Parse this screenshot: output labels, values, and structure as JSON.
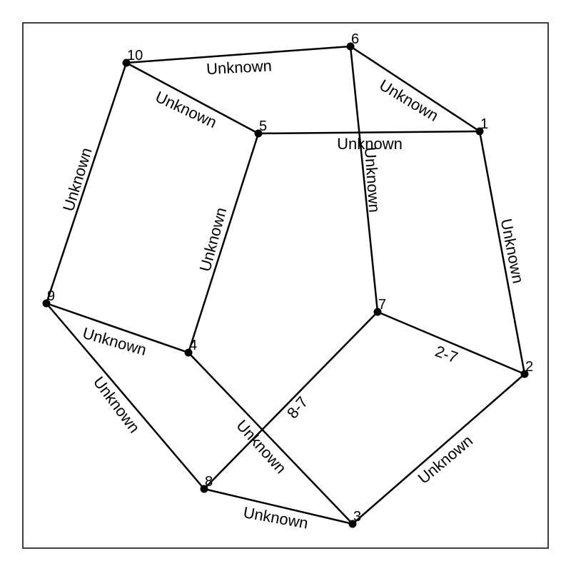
{
  "graph": {
    "nodes": [
      {
        "id": "1",
        "label": "1"
      },
      {
        "id": "2",
        "label": "2"
      },
      {
        "id": "3",
        "label": "3"
      },
      {
        "id": "4",
        "label": "4"
      },
      {
        "id": "5",
        "label": "5"
      },
      {
        "id": "6",
        "label": "6"
      },
      {
        "id": "7",
        "label": "7"
      },
      {
        "id": "8",
        "label": "8"
      },
      {
        "id": "9",
        "label": "9"
      },
      {
        "id": "10",
        "label": "10"
      }
    ],
    "edges": [
      {
        "from": "10",
        "to": "6",
        "label": "Unknown"
      },
      {
        "from": "6",
        "to": "1",
        "label": "Unknown"
      },
      {
        "from": "10",
        "to": "5",
        "label": "Unknown"
      },
      {
        "from": "5",
        "to": "1",
        "label": "Unknown"
      },
      {
        "from": "6",
        "to": "7",
        "label": "Unknown"
      },
      {
        "from": "10",
        "to": "9",
        "label": "Unknown"
      },
      {
        "from": "5",
        "to": "4",
        "label": "Unknown"
      },
      {
        "from": "1",
        "to": "2",
        "label": "Unknown"
      },
      {
        "from": "9",
        "to": "4",
        "label": "Unknown"
      },
      {
        "from": "7",
        "to": "2",
        "label": "2-7"
      },
      {
        "from": "9",
        "to": "8",
        "label": "Unknown"
      },
      {
        "from": "4",
        "to": "3",
        "label": "Unknown"
      },
      {
        "from": "8",
        "to": "7",
        "label": "8-7"
      },
      {
        "from": "3",
        "to": "2",
        "label": "Unknown"
      },
      {
        "from": "8",
        "to": "3",
        "label": "Unknown"
      }
    ]
  }
}
